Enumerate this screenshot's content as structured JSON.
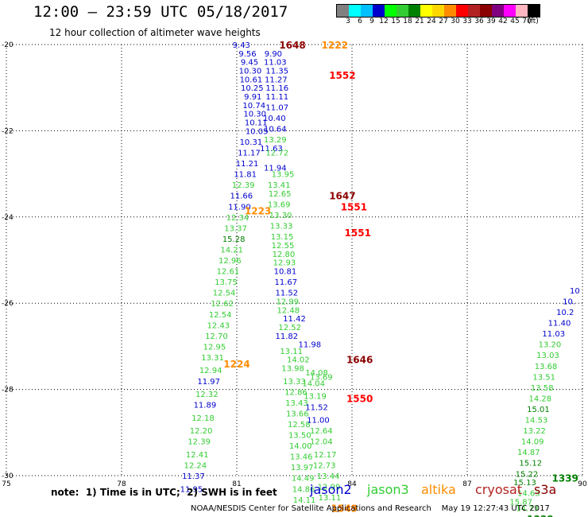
{
  "header": {
    "title": "12:00 — 23:59 UTC 05/18/2017",
    "subtitle": "12 hour collection of altimeter wave heights"
  },
  "colorbar": {
    "colors": [
      "#808080",
      "#00ffff",
      "#00bfff",
      "#0000cd",
      "#00ff00",
      "#32cd32",
      "#008000",
      "#ffff00",
      "#ffd700",
      "#ff8c00",
      "#ff0000",
      "#b22222",
      "#8b0000",
      "#800080",
      "#ff00ff",
      "#ffb6c1",
      "#000000"
    ],
    "labels": [
      "3",
      "6",
      "9",
      "12",
      "15",
      "18",
      "21",
      "24",
      "27",
      "30",
      "33",
      "36",
      "39",
      "42",
      "45",
      "70",
      "(ft)"
    ]
  },
  "footer": {
    "note": "note:  1) Time is in UTC;  2) SWH is in feet",
    "credit": "NOAA/NESDIS Center for Satellite Applications and Research    May 19 12:27:43 UTC 2017"
  },
  "legend": [
    {
      "name": "jason2",
      "color": "#0000cd"
    },
    {
      "name": "jason3",
      "color": "#32cd32"
    },
    {
      "name": "altika",
      "color": "#ff8c00"
    },
    {
      "name": "cryosat",
      "color": "#b22222"
    },
    {
      "name": "s3a",
      "color": "#8b0000"
    }
  ],
  "chart_data": {
    "type": "scatter",
    "xlim": [
      75,
      90
    ],
    "ylim": [
      -30,
      -20
    ],
    "xticks": [
      "75",
      "78",
      "81",
      "84",
      "87",
      "90"
    ],
    "yticks": [
      "-20",
      "-22",
      "-24",
      "-26",
      "-28",
      "-30"
    ],
    "grid": true,
    "labels": [
      {
        "lon": 81.12,
        "lat": -20.0,
        "text": "9.43",
        "color": "#0000cd"
      },
      {
        "lon": 81.28,
        "lat": -20.2,
        "text": "9.56",
        "color": "#0000cd"
      },
      {
        "lon": 81.33,
        "lat": -20.4,
        "text": "9.45",
        "color": "#0000cd"
      },
      {
        "lon": 81.35,
        "lat": -20.6,
        "text": "10.30",
        "color": "#0000cd"
      },
      {
        "lon": 81.37,
        "lat": -20.8,
        "text": "10.61",
        "color": "#0000cd"
      },
      {
        "lon": 81.4,
        "lat": -21.0,
        "text": "10.25",
        "color": "#0000cd"
      },
      {
        "lon": 81.42,
        "lat": -21.2,
        "text": "9.91",
        "color": "#0000cd"
      },
      {
        "lon": 81.45,
        "lat": -21.4,
        "text": "10.74",
        "color": "#0000cd"
      },
      {
        "lon": 81.47,
        "lat": -21.6,
        "text": "10.30",
        "color": "#0000cd"
      },
      {
        "lon": 81.5,
        "lat": -21.8,
        "text": "10.11",
        "color": "#0000cd"
      },
      {
        "lon": 81.52,
        "lat": -22.0,
        "text": "10.05",
        "color": "#0000cd"
      },
      {
        "lon": 81.37,
        "lat": -22.25,
        "text": "10.31",
        "color": "#0000cd"
      },
      {
        "lon": 81.32,
        "lat": -22.5,
        "text": "11.17",
        "color": "#0000cd"
      },
      {
        "lon": 81.27,
        "lat": -22.75,
        "text": "11.21",
        "color": "#0000cd"
      },
      {
        "lon": 81.22,
        "lat": -23.0,
        "text": "11.81",
        "color": "#0000cd"
      },
      {
        "lon": 81.17,
        "lat": -23.25,
        "text": "12.39",
        "color": "#32cd32"
      },
      {
        "lon": 81.12,
        "lat": -23.5,
        "text": "11.66",
        "color": "#0000cd"
      },
      {
        "lon": 81.07,
        "lat": -23.75,
        "text": "11.90",
        "color": "#0000cd"
      },
      {
        "lon": 81.02,
        "lat": -24.0,
        "text": "12.34",
        "color": "#32cd32"
      },
      {
        "lon": 80.97,
        "lat": -24.25,
        "text": "13.37",
        "color": "#32cd32"
      },
      {
        "lon": 80.92,
        "lat": -24.5,
        "text": "15.28",
        "color": "#008000"
      },
      {
        "lon": 80.87,
        "lat": -24.75,
        "text": "14.21",
        "color": "#32cd32"
      },
      {
        "lon": 80.82,
        "lat": -25.0,
        "text": "12.96",
        "color": "#32cd32"
      },
      {
        "lon": 80.77,
        "lat": -25.25,
        "text": "12.61",
        "color": "#32cd32"
      },
      {
        "lon": 80.72,
        "lat": -25.5,
        "text": "13.75",
        "color": "#32cd32"
      },
      {
        "lon": 80.67,
        "lat": -25.75,
        "text": "12.54",
        "color": "#32cd32"
      },
      {
        "lon": 80.62,
        "lat": -26.0,
        "text": "12.62",
        "color": "#32cd32"
      },
      {
        "lon": 80.57,
        "lat": -26.25,
        "text": "12.54",
        "color": "#32cd32"
      },
      {
        "lon": 80.52,
        "lat": -26.5,
        "text": "12.43",
        "color": "#32cd32"
      },
      {
        "lon": 80.47,
        "lat": -26.75,
        "text": "12.70",
        "color": "#32cd32"
      },
      {
        "lon": 80.42,
        "lat": -27.0,
        "text": "12.95",
        "color": "#32cd32"
      },
      {
        "lon": 80.37,
        "lat": -27.25,
        "text": "13.31",
        "color": "#32cd32"
      },
      {
        "lon": 80.32,
        "lat": -27.55,
        "text": "12.94",
        "color": "#32cd32"
      },
      {
        "lon": 80.27,
        "lat": -27.8,
        "text": "11.97",
        "color": "#0000cd"
      },
      {
        "lon": 80.22,
        "lat": -28.1,
        "text": "12.32",
        "color": "#32cd32"
      },
      {
        "lon": 80.17,
        "lat": -28.35,
        "text": "11.89",
        "color": "#0000cd"
      },
      {
        "lon": 80.12,
        "lat": -28.65,
        "text": "12.18",
        "color": "#32cd32"
      },
      {
        "lon": 80.07,
        "lat": -28.95,
        "text": "12.20",
        "color": "#32cd32"
      },
      {
        "lon": 80.02,
        "lat": -29.2,
        "text": "12.39",
        "color": "#32cd32"
      },
      {
        "lon": 79.97,
        "lat": -29.5,
        "text": "12.41",
        "color": "#32cd32"
      },
      {
        "lon": 79.92,
        "lat": -29.75,
        "text": "12.24",
        "color": "#32cd32"
      },
      {
        "lon": 79.87,
        "lat": -30.0,
        "text": "11.37",
        "color": "#0000cd"
      },
      {
        "lon": 79.82,
        "lat": -30.3,
        "text": "11.95",
        "color": "#0000cd"
      },
      {
        "lon": 81.95,
        "lat": -20.2,
        "text": "9.90",
        "color": "#0000cd"
      },
      {
        "lon": 82.0,
        "lat": -20.4,
        "text": "11.03",
        "color": "#0000cd"
      },
      {
        "lon": 82.05,
        "lat": -20.6,
        "text": "11.35",
        "color": "#0000cd"
      },
      {
        "lon": 82.02,
        "lat": -20.8,
        "text": "11.27",
        "color": "#0000cd"
      },
      {
        "lon": 82.05,
        "lat": -21.0,
        "text": "11.16",
        "color": "#0000cd"
      },
      {
        "lon": 82.05,
        "lat": -21.2,
        "text": "11.11",
        "color": "#0000cd"
      },
      {
        "lon": 82.05,
        "lat": -21.45,
        "text": "11.07",
        "color": "#0000cd"
      },
      {
        "lon": 81.98,
        "lat": -21.7,
        "text": "10.40",
        "color": "#0000cd"
      },
      {
        "lon": 82.0,
        "lat": -21.95,
        "text": "10.64",
        "color": "#0000cd"
      },
      {
        "lon": 81.9,
        "lat": -22.4,
        "text": "11.63",
        "color": "#0000cd"
      },
      {
        "lon": 82.0,
        "lat": -22.2,
        "text": "13.29",
        "color": "#32cd32"
      },
      {
        "lon": 82.05,
        "lat": -22.5,
        "text": "12.72",
        "color": "#32cd32"
      },
      {
        "lon": 82.0,
        "lat": -22.85,
        "text": "11.94",
        "color": "#0000cd"
      },
      {
        "lon": 82.2,
        "lat": -23.0,
        "text": "13.95",
        "color": "#32cd32"
      },
      {
        "lon": 82.1,
        "lat": -23.25,
        "text": "13.41",
        "color": "#32cd32"
      },
      {
        "lon": 82.12,
        "lat": -23.45,
        "text": "12.65",
        "color": "#32cd32"
      },
      {
        "lon": 82.1,
        "lat": -23.7,
        "text": "13.69",
        "color": "#32cd32"
      },
      {
        "lon": 82.14,
        "lat": -23.95,
        "text": "13.30",
        "color": "#32cd32"
      },
      {
        "lon": 82.16,
        "lat": -24.2,
        "text": "13.33",
        "color": "#32cd32"
      },
      {
        "lon": 82.18,
        "lat": -24.45,
        "text": "13.15",
        "color": "#32cd32"
      },
      {
        "lon": 82.2,
        "lat": -24.65,
        "text": "12.55",
        "color": "#32cd32"
      },
      {
        "lon": 82.22,
        "lat": -24.85,
        "text": "12.80",
        "color": "#32cd32"
      },
      {
        "lon": 82.24,
        "lat": -25.05,
        "text": "12.93",
        "color": "#32cd32"
      },
      {
        "lon": 82.26,
        "lat": -25.25,
        "text": "10.81",
        "color": "#0000cd"
      },
      {
        "lon": 82.28,
        "lat": -25.5,
        "text": "11.67",
        "color": "#0000cd"
      },
      {
        "lon": 82.3,
        "lat": -25.75,
        "text": "11.52",
        "color": "#0000cd"
      },
      {
        "lon": 82.32,
        "lat": -25.95,
        "text": "12.99",
        "color": "#32cd32"
      },
      {
        "lon": 82.34,
        "lat": -26.15,
        "text": "12.48",
        "color": "#32cd32"
      },
      {
        "lon": 82.5,
        "lat": -26.35,
        "text": "11.42",
        "color": "#0000cd"
      },
      {
        "lon": 82.38,
        "lat": -26.55,
        "text": "12.52",
        "color": "#32cd32"
      },
      {
        "lon": 82.3,
        "lat": -26.75,
        "text": "11.82",
        "color": "#0000cd"
      },
      {
        "lon": 82.9,
        "lat": -26.95,
        "text": "11.98",
        "color": "#0000cd"
      },
      {
        "lon": 82.42,
        "lat": -27.1,
        "text": "13.11",
        "color": "#32cd32"
      },
      {
        "lon": 82.6,
        "lat": -27.3,
        "text": "14.02",
        "color": "#32cd32"
      },
      {
        "lon": 82.46,
        "lat": -27.5,
        "text": "13.98",
        "color": "#32cd32"
      },
      {
        "lon": 83.08,
        "lat": -27.6,
        "text": "14.08",
        "color": "#32cd32"
      },
      {
        "lon": 82.5,
        "lat": -27.8,
        "text": "13.33",
        "color": "#32cd32"
      },
      {
        "lon": 83.2,
        "lat": -27.7,
        "text": "13.69",
        "color": "#32cd32"
      },
      {
        "lon": 82.54,
        "lat": -28.05,
        "text": "12.86",
        "color": "#32cd32"
      },
      {
        "lon": 83.0,
        "lat": -27.85,
        "text": "14.04",
        "color": "#32cd32"
      },
      {
        "lon": 82.56,
        "lat": -28.3,
        "text": "13.43",
        "color": "#32cd32"
      },
      {
        "lon": 83.04,
        "lat": -28.15,
        "text": "13.19",
        "color": "#32cd32"
      },
      {
        "lon": 82.58,
        "lat": -28.55,
        "text": "13.66",
        "color": "#32cd32"
      },
      {
        "lon": 83.08,
        "lat": -28.4,
        "text": "11.52",
        "color": "#0000cd"
      },
      {
        "lon": 82.62,
        "lat": -28.8,
        "text": "12.58",
        "color": "#32cd32"
      },
      {
        "lon": 83.12,
        "lat": -28.7,
        "text": "11.00",
        "color": "#0000cd"
      },
      {
        "lon": 82.64,
        "lat": -29.05,
        "text": "13.50",
        "color": "#32cd32"
      },
      {
        "lon": 83.2,
        "lat": -28.95,
        "text": "12.64",
        "color": "#32cd32"
      },
      {
        "lon": 82.66,
        "lat": -29.3,
        "text": "14.00",
        "color": "#32cd32"
      },
      {
        "lon": 83.2,
        "lat": -29.2,
        "text": "12.04",
        "color": "#32cd32"
      },
      {
        "lon": 82.68,
        "lat": -29.55,
        "text": "13.46",
        "color": "#32cd32"
      },
      {
        "lon": 83.3,
        "lat": -29.5,
        "text": "12.17",
        "color": "#32cd32"
      },
      {
        "lon": 82.7,
        "lat": -29.8,
        "text": "13.97",
        "color": "#32cd32"
      },
      {
        "lon": 83.28,
        "lat": -29.75,
        "text": "12.73",
        "color": "#32cd32"
      },
      {
        "lon": 82.72,
        "lat": -30.05,
        "text": "14.49",
        "color": "#32cd32"
      },
      {
        "lon": 83.38,
        "lat": -30.0,
        "text": "13.44",
        "color": "#32cd32"
      },
      {
        "lon": 82.74,
        "lat": -30.3,
        "text": "14.86",
        "color": "#32cd32"
      },
      {
        "lon": 83.4,
        "lat": -30.25,
        "text": "12.99",
        "color": "#32cd32"
      },
      {
        "lon": 82.76,
        "lat": -30.55,
        "text": "14.11",
        "color": "#32cd32"
      },
      {
        "lon": 83.42,
        "lat": -30.5,
        "text": "13.11",
        "color": "#32cd32"
      },
      {
        "lon": 88.56,
        "lat": -30.75,
        "text": "14.73",
        "color": "#32cd32"
      },
      {
        "lon": 88.4,
        "lat": -30.6,
        "text": "15.87",
        "color": "#32cd32"
      },
      {
        "lon": 88.6,
        "lat": -30.4,
        "text": "14.63",
        "color": "#32cd32"
      },
      {
        "lon": 88.5,
        "lat": -30.15,
        "text": "15.13",
        "color": "#008000"
      },
      {
        "lon": 88.55,
        "lat": -29.95,
        "text": "15.22",
        "color": "#008000"
      },
      {
        "lon": 88.65,
        "lat": -29.7,
        "text": "15.12",
        "color": "#008000"
      },
      {
        "lon": 88.6,
        "lat": -29.45,
        "text": "14.87",
        "color": "#32cd32"
      },
      {
        "lon": 88.7,
        "lat": -29.2,
        "text": "14.09",
        "color": "#32cd32"
      },
      {
        "lon": 88.75,
        "lat": -28.95,
        "text": "13.22",
        "color": "#32cd32"
      },
      {
        "lon": 88.8,
        "lat": -28.7,
        "text": "14.53",
        "color": "#32cd32"
      },
      {
        "lon": 88.85,
        "lat": -28.45,
        "text": "15.01",
        "color": "#008000"
      },
      {
        "lon": 88.9,
        "lat": -28.2,
        "text": "14.28",
        "color": "#32cd32"
      },
      {
        "lon": 88.95,
        "lat": -27.95,
        "text": "13.58",
        "color": "#32cd32"
      },
      {
        "lon": 89.0,
        "lat": -27.7,
        "text": "13.51",
        "color": "#32cd32"
      },
      {
        "lon": 89.05,
        "lat": -27.45,
        "text": "13.68",
        "color": "#32cd32"
      },
      {
        "lon": 89.1,
        "lat": -27.2,
        "text": "13.03",
        "color": "#32cd32"
      },
      {
        "lon": 89.15,
        "lat": -26.95,
        "text": "13.20",
        "color": "#32cd32"
      },
      {
        "lon": 89.25,
        "lat": -26.7,
        "text": "11.03",
        "color": "#0000cd"
      },
      {
        "lon": 89.4,
        "lat": -26.45,
        "text": "11.40",
        "color": "#0000cd"
      },
      {
        "lon": 89.55,
        "lat": -26.2,
        "text": "10.2",
        "color": "#0000cd"
      },
      {
        "lon": 89.65,
        "lat": -25.95,
        "text": "10.",
        "color": "#0000cd"
      },
      {
        "lon": 89.8,
        "lat": -25.7,
        "text": "10",
        "color": "#0000cd"
      }
    ],
    "time_labels": [
      {
        "lon": 82.45,
        "lat": -20.0,
        "text": "1648",
        "color": "#8b0000"
      },
      {
        "lon": 83.55,
        "lat": -20.0,
        "text": "1222",
        "color": "#ff8c00"
      },
      {
        "lon": 83.75,
        "lat": -20.7,
        "text": "1552",
        "color": "#ff0000"
      },
      {
        "lon": 83.75,
        "lat": -23.5,
        "text": "1647",
        "color": "#8b0000"
      },
      {
        "lon": 84.05,
        "lat": -23.75,
        "text": "1551",
        "color": "#ff0000"
      },
      {
        "lon": 81.55,
        "lat": -23.85,
        "text": "1223",
        "color": "#ff8c00"
      },
      {
        "lon": 84.15,
        "lat": -24.35,
        "text": "1551",
        "color": "#ff0000"
      },
      {
        "lon": 84.2,
        "lat": -27.3,
        "text": "1646",
        "color": "#8b0000"
      },
      {
        "lon": 81.0,
        "lat": -27.4,
        "text": "1224",
        "color": "#ff8c00"
      },
      {
        "lon": 84.2,
        "lat": -28.2,
        "text": "1550",
        "color": "#ff0000"
      },
      {
        "lon": 83.8,
        "lat": -30.75,
        "text": "1549",
        "color": "#ff0000"
      },
      {
        "lon": 83.8,
        "lat": -30.75,
        "text": "1549",
        "color": "#ff8c00"
      },
      {
        "lon": 89.55,
        "lat": -30.05,
        "text": "1339",
        "color": "#008000"
      },
      {
        "lon": 88.9,
        "lat": -31.0,
        "text": "1338",
        "color": "#008000"
      }
    ]
  }
}
